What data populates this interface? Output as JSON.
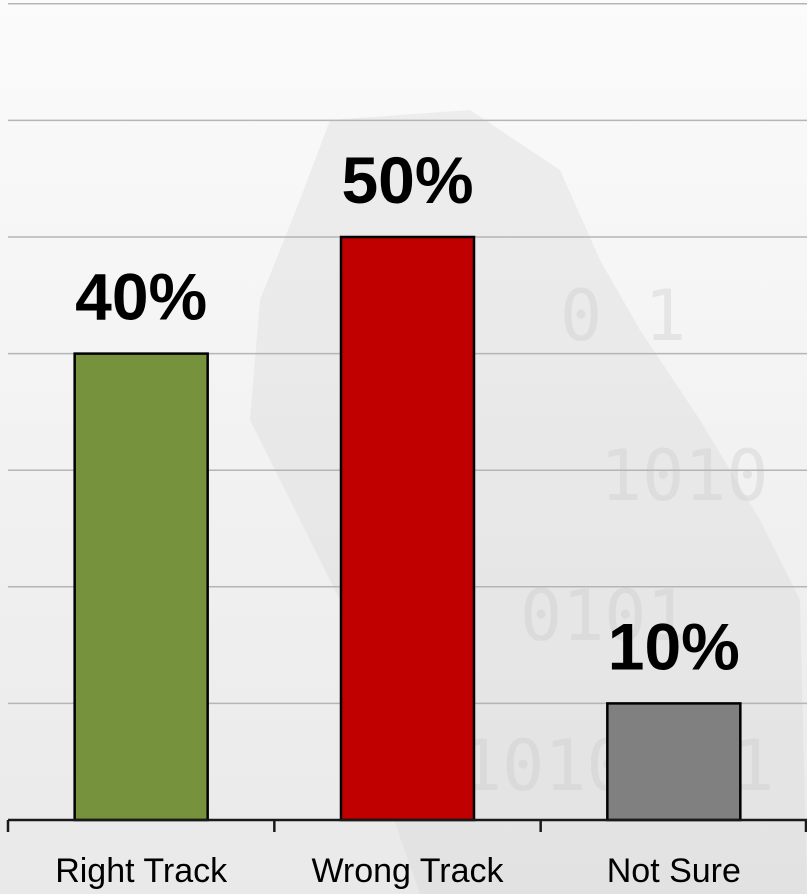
{
  "chart_data": {
    "type": "bar",
    "categories": [
      "Right Track",
      "Wrong Track",
      "Not Sure"
    ],
    "values": [
      40,
      50,
      10
    ],
    "data_labels": [
      "40%",
      "50%",
      "10%"
    ],
    "colors": [
      "#76923c",
      "#c00000",
      "#808080"
    ],
    "ylim": [
      0,
      70
    ],
    "gridline_step": 10,
    "grid": true,
    "legend": "none",
    "title": "",
    "xlabel": "",
    "ylabel": ""
  }
}
